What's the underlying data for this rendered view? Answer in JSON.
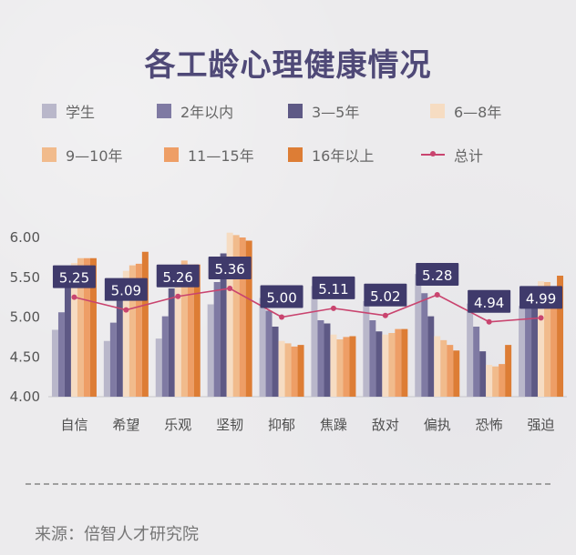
{
  "title": "各工龄心理健康情况",
  "source": "来源：倍智人才研究院",
  "legend": [
    {
      "label": "学生",
      "color": "#b9b7ca",
      "kind": "bar"
    },
    {
      "label": "2年以内",
      "color": "#7f7aa3",
      "kind": "bar"
    },
    {
      "label": "3—5年",
      "color": "#5e5985",
      "kind": "bar"
    },
    {
      "label": "6—8年",
      "color": "#f6dcc2",
      "kind": "bar"
    },
    {
      "label": "9—10年",
      "color": "#f1bb8c",
      "kind": "bar"
    },
    {
      "label": "11—15年",
      "color": "#ee9e66",
      "kind": "bar"
    },
    {
      "label": "16年以上",
      "color": "#dd7d35",
      "kind": "bar"
    },
    {
      "label": "总计",
      "color": "#c9446f",
      "kind": "line"
    }
  ],
  "chart_data": {
    "type": "bar",
    "title": "各工龄心理健康情况",
    "categories": [
      "自信",
      "希望",
      "乐观",
      "坚韧",
      "抑郁",
      "焦躁",
      "敌对",
      "偏执",
      "恐怖",
      "强迫"
    ],
    "yticks": [
      "4.00",
      "4.50",
      "5.00",
      "5.50",
      "6.00"
    ],
    "ylim": [
      4.0,
      6.0
    ],
    "grid": false,
    "legend_position": "top",
    "series": [
      {
        "name": "学生",
        "type": "bar",
        "color": "#b9b7ca",
        "values": [
          4.84,
          4.7,
          4.73,
          5.16,
          5.24,
          5.39,
          5.2,
          5.54,
          5.17,
          5.14
        ]
      },
      {
        "name": "2年以内",
        "type": "bar",
        "color": "#7f7aa3",
        "values": [
          5.06,
          4.93,
          5.01,
          5.44,
          5.08,
          4.96,
          4.96,
          5.3,
          4.88,
          5.34
        ]
      },
      {
        "name": "3—5年",
        "type": "bar",
        "color": "#5e5985",
        "values": [
          5.42,
          5.3,
          5.36,
          5.8,
          4.88,
          4.92,
          4.82,
          5.01,
          4.57,
          5.38
        ]
      },
      {
        "name": "6—8年",
        "type": "bar",
        "color": "#f6dcc2",
        "values": [
          5.68,
          5.58,
          5.64,
          6.06,
          4.7,
          4.78,
          4.78,
          4.76,
          4.4,
          5.45
        ]
      },
      {
        "name": "9—10年",
        "type": "bar",
        "color": "#f1bb8c",
        "values": [
          5.74,
          5.65,
          5.71,
          6.03,
          4.67,
          4.72,
          4.8,
          4.71,
          4.38,
          5.44
        ]
      },
      {
        "name": "11—15年",
        "type": "bar",
        "color": "#ee9e66",
        "values": [
          5.74,
          5.67,
          5.66,
          6.0,
          4.63,
          4.75,
          4.85,
          4.65,
          4.41,
          5.37
        ]
      },
      {
        "name": "16年以上",
        "type": "bar",
        "color": "#dd7d35",
        "values": [
          5.74,
          5.82,
          5.66,
          5.96,
          4.65,
          4.76,
          4.85,
          4.58,
          4.65,
          5.52
        ]
      },
      {
        "name": "总计",
        "type": "line",
        "color": "#c9446f",
        "values": [
          5.25,
          5.09,
          5.26,
          5.36,
          5.0,
          5.11,
          5.02,
          5.28,
          4.94,
          4.99
        ]
      }
    ]
  },
  "total_labels": [
    "5.25",
    "5.09",
    "5.26",
    "5.36",
    "5.00",
    "5.11",
    "5.02",
    "5.28",
    "4.94",
    "4.99"
  ]
}
